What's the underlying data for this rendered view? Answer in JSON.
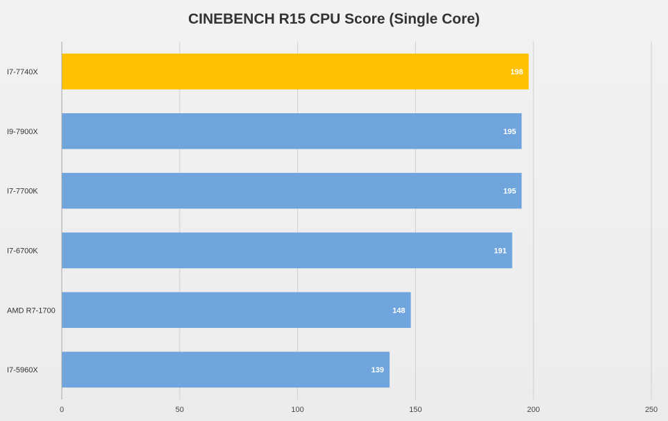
{
  "chart_data": {
    "type": "bar",
    "orientation": "horizontal",
    "title": "CINEBENCH R15 CPU Score (Single Core)",
    "xlabel": "",
    "ylabel": "",
    "categories": [
      "I7-7740X",
      "I9-7900X",
      "I7-7700K",
      "I7-6700K",
      "AMD R7-1700",
      "I7-5960X"
    ],
    "values": [
      198,
      195,
      195,
      191,
      148,
      139
    ],
    "xlim": [
      0,
      250
    ],
    "xticks": [
      0,
      50,
      100,
      150,
      200,
      250
    ],
    "grid": true,
    "legend": "none",
    "colors": {
      "default_bar": "#6fa5dc",
      "highlight_bar": "#ffc000",
      "data_label": "#ffffff",
      "grid": "#cfcfcf",
      "axis": "#a6a6a6",
      "title": "#333333"
    },
    "highlight_categories": [
      "I7-7740X"
    ]
  }
}
